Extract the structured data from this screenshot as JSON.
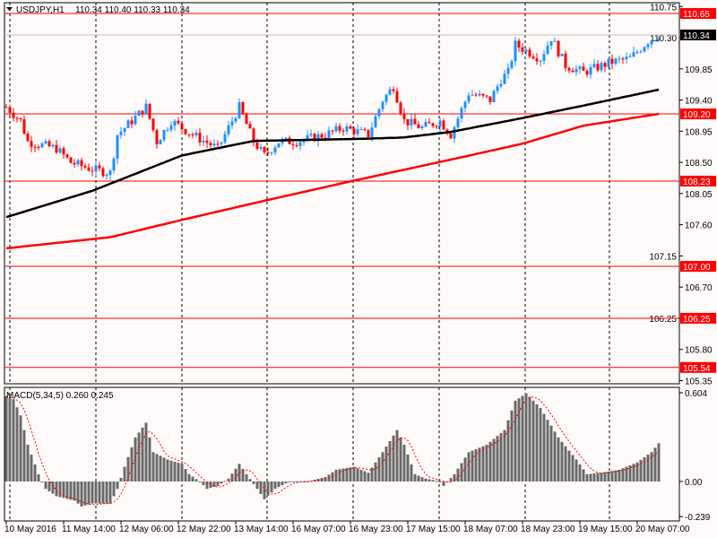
{
  "header": {
    "symbol": "USDJPY,H1",
    "ohlc": "110.34 110.40 110.33 110.34"
  },
  "chart_data": {
    "type": "candlestick",
    "symbol": "USDJPY",
    "timeframe": "H1",
    "ylim": [
      105.35,
      110.75
    ],
    "price_ticks": [
      "110.75",
      "110.30",
      "109.85",
      "109.40",
      "108.95",
      "108.50",
      "108.05",
      "107.60",
      "107.15",
      "106.70",
      "106.25",
      "105.80",
      "105.35"
    ],
    "horizontal_levels": [
      {
        "price": 110.65,
        "label": "110.65",
        "color": "#ff0000"
      },
      {
        "price": 109.2,
        "label": "109.20",
        "color": "#ff0000"
      },
      {
        "price": 108.23,
        "label": "108.23",
        "color": "#ff0000"
      },
      {
        "price": 107.0,
        "label": "107.00",
        "color": "#ff0000"
      },
      {
        "price": 106.25,
        "label": "106.25",
        "color": "#ff0000"
      },
      {
        "price": 105.54,
        "label": "105.54",
        "color": "#ff0000"
      }
    ],
    "current_price": {
      "price": 110.34,
      "label": "110.34"
    },
    "bar_count": 183,
    "close_path": [
      [
        0,
        109.3
      ],
      [
        4,
        109.1
      ],
      [
        6,
        108.8
      ],
      [
        14,
        108.7
      ],
      [
        18,
        108.5
      ],
      [
        24,
        108.4
      ],
      [
        29,
        108.35
      ],
      [
        31,
        108.9
      ],
      [
        39,
        109.3
      ],
      [
        42,
        108.8
      ],
      [
        46,
        109.1
      ],
      [
        52,
        108.9
      ],
      [
        59,
        108.7
      ],
      [
        65,
        109.3
      ],
      [
        69,
        108.8
      ],
      [
        72,
        108.6
      ],
      [
        76,
        108.8
      ],
      [
        81,
        108.8
      ],
      [
        89,
        108.9
      ],
      [
        94,
        109.0
      ],
      [
        101,
        108.9
      ],
      [
        105,
        109.4
      ],
      [
        108,
        109.6
      ],
      [
        111,
        109.1
      ],
      [
        116,
        109.0
      ],
      [
        121,
        109.1
      ],
      [
        124,
        108.9
      ],
      [
        129,
        109.5
      ],
      [
        135,
        109.4
      ],
      [
        138,
        109.7
      ],
      [
        140,
        109.8
      ],
      [
        142,
        110.2
      ],
      [
        149,
        110.0
      ],
      [
        152,
        110.3
      ],
      [
        156,
        109.9
      ],
      [
        161,
        109.8
      ],
      [
        169,
        109.95
      ],
      [
        174,
        110.0
      ],
      [
        179,
        110.25
      ],
      [
        182,
        110.34
      ]
    ],
    "ma_black": [
      [
        0,
        107.71
      ],
      [
        24,
        108.09
      ],
      [
        49,
        108.6
      ],
      [
        69,
        108.81
      ],
      [
        99,
        108.84
      ],
      [
        111,
        108.86
      ],
      [
        124,
        108.94
      ],
      [
        144,
        109.14
      ],
      [
        161,
        109.32
      ],
      [
        182,
        109.55
      ]
    ],
    "ma_red": [
      [
        0,
        107.26
      ],
      [
        29,
        107.42
      ],
      [
        49,
        107.67
      ],
      [
        74,
        107.97
      ],
      [
        99,
        108.26
      ],
      [
        124,
        108.54
      ],
      [
        144,
        108.77
      ],
      [
        161,
        109.03
      ],
      [
        182,
        109.2
      ]
    ],
    "colors": {
      "bull": "#1e90ff",
      "bear": "#ff0000",
      "ma_black": "#000000",
      "ma_red": "#ff0000"
    },
    "x_labels": [
      "10 May 2016",
      "11 May 14:00",
      "12 May 06:00",
      "12 May 22:00",
      "13 May 14:00",
      "16 May 07:00",
      "16 May 23:00",
      "17 May 15:00",
      "18 May 07:00",
      "18 May 23:00",
      "19 May 15:00",
      "20 May 07:00"
    ],
    "macd": {
      "title": "MACD(5,34,5) 0.260 0.245",
      "ylim": [
        -0.239,
        0.604
      ],
      "ticks": [
        "0.604",
        "0.00",
        "-0.239"
      ],
      "hist_path": [
        [
          0,
          0.58
        ],
        [
          2,
          0.56
        ],
        [
          4,
          0.45
        ],
        [
          6,
          0.25
        ],
        [
          9,
          0.05
        ],
        [
          11,
          -0.05
        ],
        [
          14,
          -0.1
        ],
        [
          19,
          -0.13
        ],
        [
          21,
          -0.17
        ],
        [
          24,
          -0.15
        ],
        [
          29,
          -0.15
        ],
        [
          31,
          -0.05
        ],
        [
          33,
          0.1
        ],
        [
          36,
          0.3
        ],
        [
          39,
          0.4
        ],
        [
          41,
          0.2
        ],
        [
          45,
          0.15
        ],
        [
          49,
          0.12
        ],
        [
          51,
          0.05
        ],
        [
          54,
          0.0
        ],
        [
          56,
          -0.05
        ],
        [
          59,
          -0.03
        ],
        [
          62,
          0.02
        ],
        [
          65,
          0.12
        ],
        [
          67,
          0.05
        ],
        [
          70,
          -0.05
        ],
        [
          72,
          -0.12
        ],
        [
          75,
          -0.05
        ],
        [
          79,
          0.0
        ],
        [
          84,
          0.0
        ],
        [
          89,
          0.03
        ],
        [
          92,
          0.08
        ],
        [
          97,
          0.1
        ],
        [
          101,
          0.06
        ],
        [
          105,
          0.2
        ],
        [
          109,
          0.35
        ],
        [
          111,
          0.25
        ],
        [
          114,
          0.05
        ],
        [
          117,
          0.02
        ],
        [
          121,
          0.0
        ],
        [
          122,
          -0.03
        ],
        [
          125,
          0.05
        ],
        [
          129,
          0.2
        ],
        [
          134,
          0.25
        ],
        [
          139,
          0.35
        ],
        [
          142,
          0.55
        ],
        [
          145,
          0.6
        ],
        [
          149,
          0.5
        ],
        [
          154,
          0.3
        ],
        [
          159,
          0.15
        ],
        [
          162,
          0.05
        ],
        [
          166,
          0.06
        ],
        [
          171,
          0.08
        ],
        [
          176,
          0.13
        ],
        [
          180,
          0.2
        ],
        [
          182,
          0.26
        ]
      ]
    }
  }
}
